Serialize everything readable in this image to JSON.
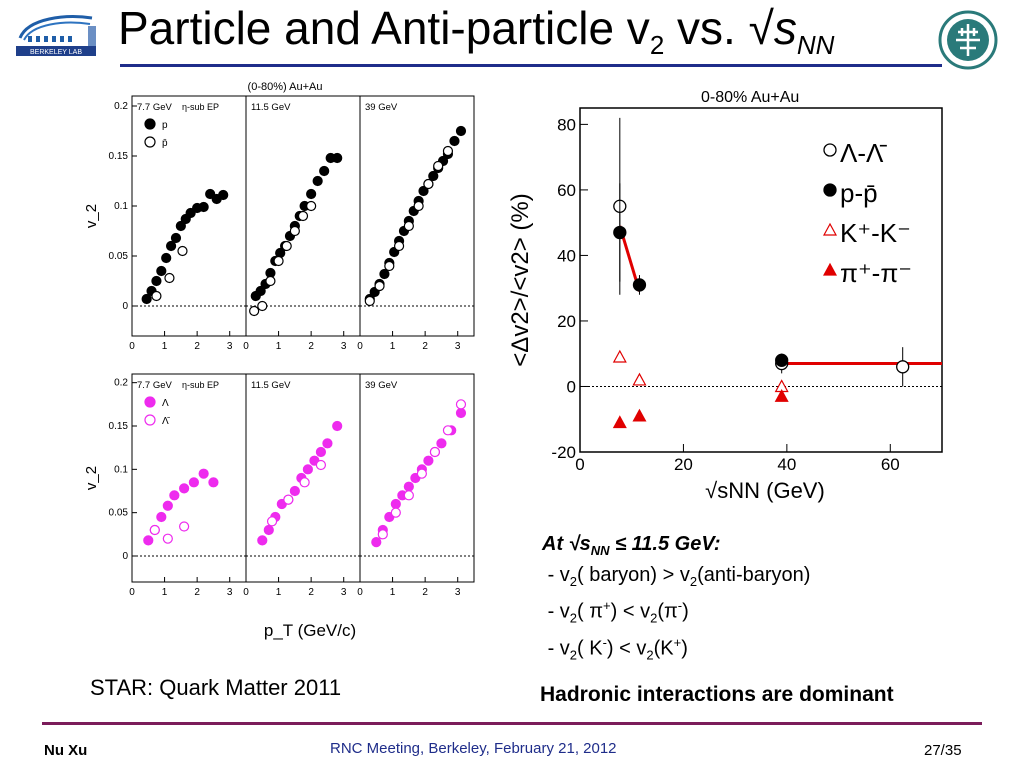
{
  "slide": {
    "title_main": "Particle and Anti-particle v",
    "title_sub": "2",
    "title_vs": " vs. √",
    "title_s": "s",
    "title_nn": "NN",
    "footer_left": "Nu Xu",
    "footer_center": "RNC Meeting, Berkeley, February 21, 2012",
    "footer_right": "27/35",
    "caption": "STAR: Quark Matter 2011",
    "conclusion": "Hadronic interactions are dominant",
    "logo_left_text": "BERKELEY LAB",
    "notes": {
      "head_pre": "At √",
      "head_s": "s",
      "head_nn": "NN",
      "head_post": " ≤ 11.5 GeV:",
      "line1_a": "- v",
      "line1_b": "2",
      "line1_c": "( baryon) > v",
      "line1_d": "2",
      "line1_e": "(anti-baryon)",
      "line2_a": "- v",
      "line2_b": "2",
      "line2_c": "( π",
      "line2_d": "+",
      "line2_e": ") < v",
      "line2_f": "2",
      "line2_g": "(π",
      "line2_h": "-",
      "line2_i": ")",
      "line3_a": "- v",
      "line3_b": "2",
      "line3_c": "( K",
      "line3_d": "-",
      "line3_e": ") < v",
      "line3_f": "2",
      "line3_g": "(K",
      "line3_h": "+",
      "line3_i": ")"
    }
  },
  "colors": {
    "title_rule": "#1f2d8a",
    "footer_rule": "#7b1c5a",
    "magenta": "#ee2bee",
    "red": "#e00000"
  },
  "chart_data": [
    {
      "type": "scatter",
      "title": "(0-80%) Au+Au",
      "xlabel": "p_T (GeV/c)",
      "ylabel": "v_2",
      "ylim": [
        -0.03,
        0.21
      ],
      "xlim": [
        0,
        3.5
      ],
      "panels": [
        {
          "label": "7.7 GeV",
          "method": "η-sub EP",
          "series": [
            {
              "name": "p",
              "style": "filled-black",
              "x": [
                0.45,
                0.6,
                0.75,
                0.9,
                1.05,
                1.2,
                1.35,
                1.5,
                1.65,
                1.8,
                2.0,
                2.2,
                2.4,
                2.6,
                2.8
              ],
              "y": [
                0.007,
                0.015,
                0.025,
                0.035,
                0.048,
                0.06,
                0.068,
                0.08,
                0.087,
                0.093,
                0.098,
                0.099,
                0.112,
                0.107,
                0.111
              ]
            },
            {
              "name": "p̄",
              "style": "open-black",
              "x": [
                0.75,
                1.15,
                1.55
              ],
              "y": [
                0.01,
                0.028,
                0.055
              ]
            }
          ]
        },
        {
          "label": "11.5 GeV",
          "method": "",
          "series": [
            {
              "name": "p",
              "style": "filled-black",
              "x": [
                0.3,
                0.45,
                0.6,
                0.75,
                0.9,
                1.05,
                1.2,
                1.35,
                1.5,
                1.65,
                1.8,
                2.0,
                2.2,
                2.4,
                2.6,
                2.8
              ],
              "y": [
                0.01,
                0.015,
                0.022,
                0.033,
                0.045,
                0.053,
                0.06,
                0.07,
                0.08,
                0.09,
                0.1,
                0.112,
                0.125,
                0.135,
                0.148,
                0.148
              ]
            },
            {
              "name": "p̄",
              "style": "open-black",
              "x": [
                0.25,
                0.5,
                0.75,
                1.0,
                1.25,
                1.5,
                1.75,
                2.0
              ],
              "y": [
                -0.005,
                0.0,
                0.025,
                0.045,
                0.06,
                0.075,
                0.09,
                0.1
              ]
            }
          ]
        },
        {
          "label": "39 GeV",
          "method": "",
          "series": [
            {
              "name": "p",
              "style": "filled-black",
              "x": [
                0.3,
                0.45,
                0.6,
                0.75,
                0.9,
                1.05,
                1.2,
                1.35,
                1.5,
                1.65,
                1.8,
                1.95,
                2.1,
                2.25,
                2.4,
                2.55,
                2.7,
                2.9,
                3.1
              ],
              "y": [
                0.007,
                0.014,
                0.022,
                0.032,
                0.043,
                0.054,
                0.065,
                0.075,
                0.085,
                0.095,
                0.105,
                0.115,
                0.122,
                0.13,
                0.138,
                0.145,
                0.152,
                0.165,
                0.175
              ]
            },
            {
              "name": "p̄",
              "style": "open-black",
              "x": [
                0.3,
                0.6,
                0.9,
                1.2,
                1.5,
                1.8,
                2.1,
                2.4,
                2.7
              ],
              "y": [
                0.005,
                0.02,
                0.04,
                0.06,
                0.08,
                0.1,
                0.122,
                0.14,
                0.155
              ]
            }
          ]
        },
        {
          "label": "7.7 GeV",
          "method": "η-sub EP",
          "series": [
            {
              "name": "Λ",
              "style": "filled-magenta",
              "x": [
                0.5,
                0.7,
                0.9,
                1.1,
                1.3,
                1.6,
                1.9,
                2.2,
                2.5
              ],
              "y": [
                0.018,
                0.03,
                0.045,
                0.058,
                0.07,
                0.078,
                0.085,
                0.095,
                0.085
              ]
            },
            {
              "name": "Λ̄",
              "style": "open-magenta",
              "x": [
                0.7,
                1.1,
                1.6
              ],
              "y": [
                0.03,
                0.02,
                0.034
              ]
            }
          ]
        },
        {
          "label": "11.5 GeV",
          "method": "",
          "series": [
            {
              "name": "Λ",
              "style": "filled-magenta",
              "x": [
                0.5,
                0.7,
                0.9,
                1.1,
                1.3,
                1.5,
                1.7,
                1.9,
                2.1,
                2.3,
                2.5,
                2.8
              ],
              "y": [
                0.018,
                0.03,
                0.045,
                0.06,
                0.065,
                0.075,
                0.09,
                0.1,
                0.11,
                0.12,
                0.13,
                0.15
              ]
            },
            {
              "name": "Λ̄",
              "style": "open-magenta",
              "x": [
                0.8,
                1.3,
                1.8,
                2.3
              ],
              "y": [
                0.04,
                0.065,
                0.085,
                0.105
              ]
            }
          ]
        },
        {
          "label": "39 GeV",
          "method": "",
          "series": [
            {
              "name": "Λ",
              "style": "filled-magenta",
              "x": [
                0.5,
                0.7,
                0.9,
                1.1,
                1.3,
                1.5,
                1.7,
                1.9,
                2.1,
                2.3,
                2.5,
                2.8,
                3.1
              ],
              "y": [
                0.016,
                0.03,
                0.045,
                0.06,
                0.07,
                0.08,
                0.09,
                0.1,
                0.11,
                0.12,
                0.13,
                0.145,
                0.165
              ]
            },
            {
              "name": "Λ̄",
              "style": "open-magenta",
              "x": [
                0.7,
                1.1,
                1.5,
                1.9,
                2.3,
                2.7,
                3.1
              ],
              "y": [
                0.025,
                0.05,
                0.07,
                0.095,
                0.12,
                0.145,
                0.175
              ]
            }
          ]
        }
      ],
      "xticks": [
        "0",
        "1",
        "2",
        "3"
      ],
      "yticks": [
        "0",
        "0.05",
        "0.1",
        "0.15",
        "0.2"
      ]
    },
    {
      "type": "scatter",
      "title": "0-80% Au+Au",
      "ylabel": "<Δv2>/<v2> (%)",
      "xlabel": "√sNN  (GeV)",
      "xlim": [
        0,
        70
      ],
      "ylim": [
        -20,
        85
      ],
      "xticks": [
        "0",
        "20",
        "40",
        "60"
      ],
      "yticks": [
        "-20",
        "0",
        "20",
        "40",
        "60",
        "80"
      ],
      "series": [
        {
          "name": "Λ-Λ̄",
          "style": "open-black",
          "x": [
            7.7,
            39,
            62.4
          ],
          "y": [
            55,
            7,
            6
          ],
          "yerr": [
            27,
            3,
            6
          ]
        },
        {
          "name": "p-p̄",
          "style": "filled-black",
          "x": [
            7.7,
            11.5,
            39
          ],
          "y": [
            47,
            31,
            8
          ],
          "yerr": [
            15,
            3,
            2
          ]
        },
        {
          "name": "K⁺-K⁻",
          "style": "open-red-triangle",
          "x": [
            7.7,
            11.5,
            39
          ],
          "y": [
            9,
            2,
            0
          ],
          "yerr": [
            0,
            0,
            0
          ]
        },
        {
          "name": "π⁺-π⁻",
          "style": "filled-red-triangle",
          "x": [
            7.7,
            11.5,
            39
          ],
          "y": [
            -11,
            -9,
            -3
          ],
          "yerr": [
            0,
            0,
            0
          ]
        }
      ],
      "fit_lines": [
        {
          "x": [
            7.7,
            11.5
          ],
          "y": [
            49,
            29
          ]
        },
        {
          "x": [
            39,
            70
          ],
          "y": [
            7,
            7
          ]
        }
      ]
    }
  ]
}
